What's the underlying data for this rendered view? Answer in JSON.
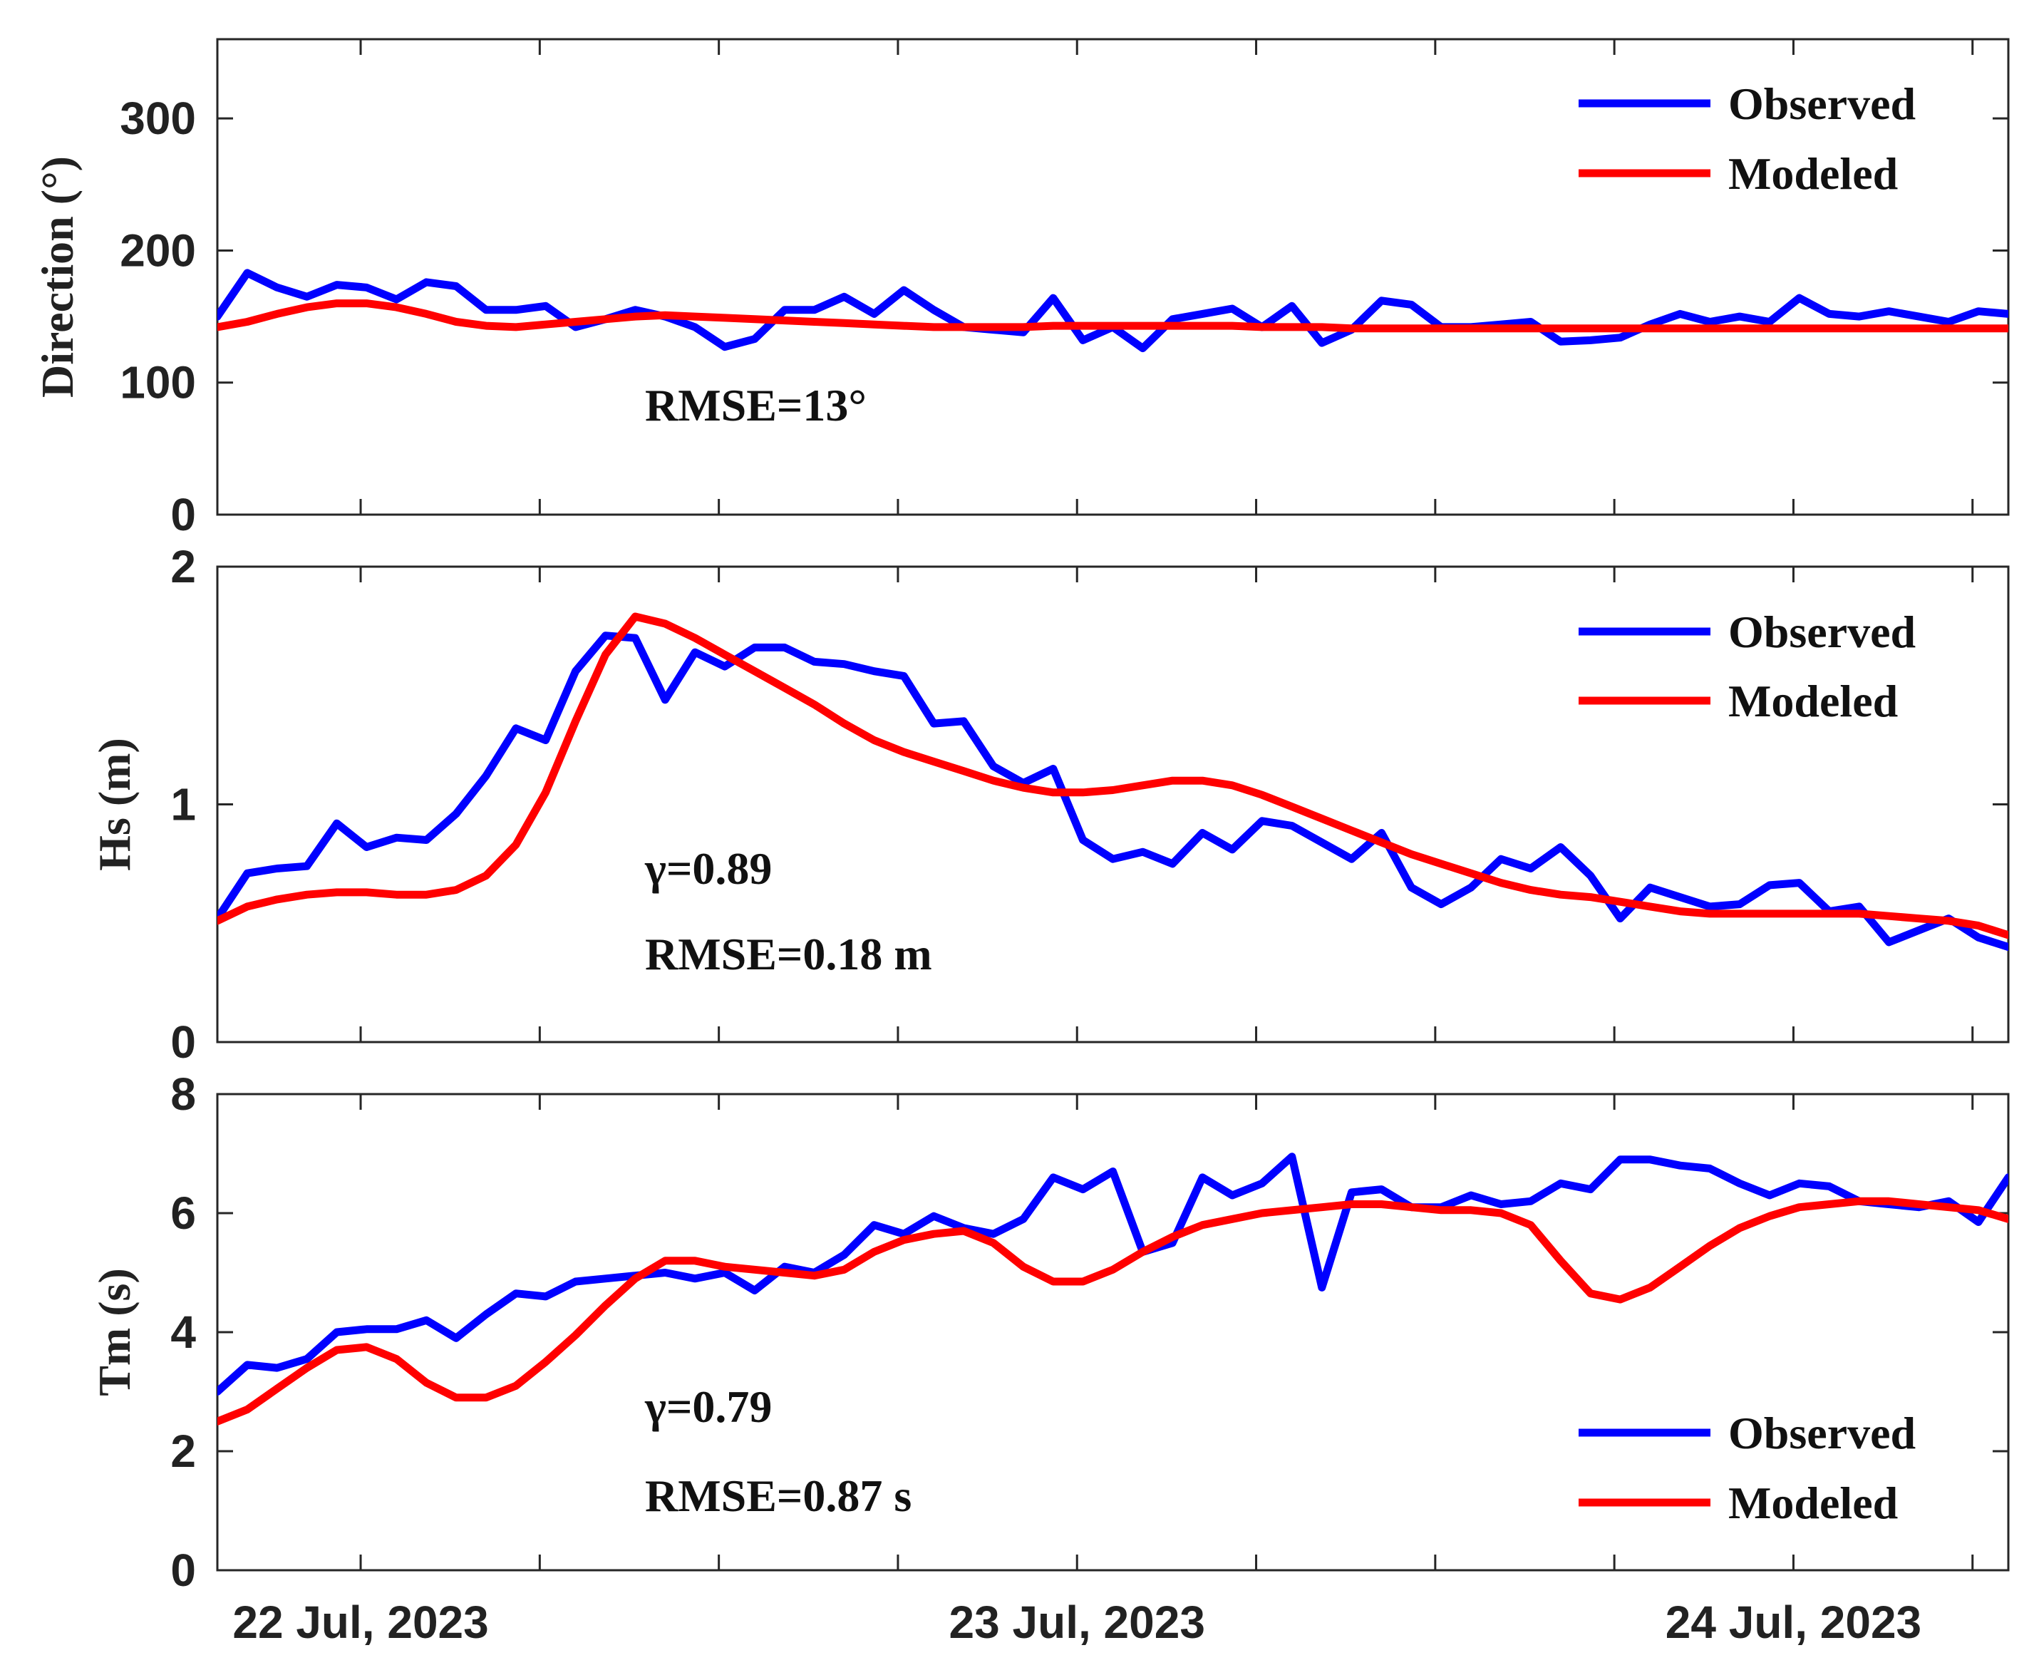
{
  "chart_data": [
    {
      "type": "line",
      "id": "direction",
      "ylabel": "Direction (°)",
      "ylim": [
        0,
        360
      ],
      "yticks": [
        0,
        100,
        200,
        300
      ],
      "xlim": [
        0,
        1
      ],
      "x_tick_labels": [],
      "legend": {
        "placement": "top-right",
        "entries": [
          "Observed",
          "Modeled"
        ]
      },
      "annotations": [
        "RMSE=13°"
      ],
      "series": [
        {
          "name": "Observed",
          "color": "#0000ff",
          "x": [
            0,
            0.0167,
            0.0333,
            0.05,
            0.0667,
            0.0833,
            0.1,
            0.1167,
            0.1333,
            0.15,
            0.1667,
            0.1833,
            0.2,
            0.2167,
            0.2333,
            0.25,
            0.2667,
            0.2833,
            0.3,
            0.3167,
            0.3333,
            0.35,
            0.3667,
            0.3833,
            0.4,
            0.4167,
            0.4333,
            0.45,
            0.4667,
            0.4833,
            0.5,
            0.5167,
            0.5333,
            0.55,
            0.5667,
            0.5833,
            0.6,
            0.6167,
            0.6333,
            0.65,
            0.6667,
            0.6833,
            0.7,
            0.7167,
            0.7333,
            0.75,
            0.7667,
            0.7833,
            0.8,
            0.8167,
            0.8333,
            0.85,
            0.8667,
            0.8833,
            0.9,
            0.9167,
            0.9333,
            0.95,
            0.9667,
            0.9833,
            1
          ],
          "values": [
            150,
            183,
            172,
            165,
            174,
            172,
            163,
            176,
            173,
            155,
            155,
            158,
            142,
            148,
            155,
            150,
            142,
            127,
            133,
            155,
            155,
            165,
            152,
            170,
            155,
            142,
            140,
            138,
            164,
            132,
            142,
            126,
            148,
            152,
            156,
            142,
            158,
            130,
            140,
            162,
            159,
            142,
            142,
            144,
            146,
            131,
            132,
            134,
            144,
            152,
            146,
            150,
            146,
            164,
            152,
            150,
            154,
            150,
            146,
            154,
            152
          ]
        },
        {
          "name": "Modeled",
          "color": "#ff0000",
          "x": [
            0,
            0.0167,
            0.0333,
            0.05,
            0.0667,
            0.0833,
            0.1,
            0.1167,
            0.1333,
            0.15,
            0.1667,
            0.1833,
            0.2,
            0.2167,
            0.2333,
            0.25,
            0.2667,
            0.2833,
            0.3,
            0.3167,
            0.3333,
            0.35,
            0.3667,
            0.3833,
            0.4,
            0.4167,
            0.4333,
            0.45,
            0.4667,
            0.4833,
            0.5,
            0.5167,
            0.5333,
            0.55,
            0.5667,
            0.5833,
            0.6,
            0.6167,
            0.6333,
            0.65,
            0.6667,
            0.6833,
            0.7,
            0.7167,
            0.7333,
            0.75,
            0.7667,
            0.7833,
            0.8,
            0.8167,
            0.8333,
            0.85,
            0.8667,
            0.8833,
            0.9,
            0.9167,
            0.9333,
            0.95,
            0.9667,
            0.9833,
            1
          ],
          "values": [
            142,
            146,
            152,
            157,
            160,
            160,
            157,
            152,
            146,
            143,
            142,
            144,
            146,
            148,
            150,
            151,
            150,
            149,
            148,
            147,
            146,
            145,
            144,
            143,
            142,
            142,
            142,
            142,
            143,
            143,
            143,
            143,
            143,
            143,
            143,
            142,
            142,
            142,
            141,
            141,
            141,
            141,
            141,
            141,
            141,
            141,
            141,
            141,
            141,
            141,
            141,
            141,
            141,
            141,
            141,
            141,
            141,
            141,
            141,
            141,
            141
          ]
        }
      ]
    },
    {
      "type": "line",
      "id": "hs",
      "ylabel": "Hs (m)",
      "ylim": [
        0,
        2
      ],
      "yticks": [
        0,
        1,
        2
      ],
      "xlim": [
        0,
        1
      ],
      "x_tick_labels": [],
      "legend": {
        "placement": "top-right",
        "entries": [
          "Observed",
          "Modeled"
        ]
      },
      "annotations": [
        "γ=0.89",
        "RMSE=0.18 m"
      ],
      "series": [
        {
          "name": "Observed",
          "color": "#0000ff",
          "x": [
            0,
            0.0167,
            0.0333,
            0.05,
            0.0667,
            0.0833,
            0.1,
            0.1167,
            0.1333,
            0.15,
            0.1667,
            0.1833,
            0.2,
            0.2167,
            0.2333,
            0.25,
            0.2667,
            0.2833,
            0.3,
            0.3167,
            0.3333,
            0.35,
            0.3667,
            0.3833,
            0.4,
            0.4167,
            0.4333,
            0.45,
            0.4667,
            0.4833,
            0.5,
            0.5167,
            0.5333,
            0.55,
            0.5667,
            0.5833,
            0.6,
            0.6167,
            0.6333,
            0.65,
            0.6667,
            0.6833,
            0.7,
            0.7167,
            0.7333,
            0.75,
            0.7667,
            0.7833,
            0.8,
            0.8167,
            0.8333,
            0.85,
            0.8667,
            0.8833,
            0.9,
            0.9167,
            0.9333,
            0.95,
            0.9667,
            0.9833,
            1
          ],
          "values": [
            0.52,
            0.71,
            0.73,
            0.74,
            0.92,
            0.82,
            0.86,
            0.85,
            0.96,
            1.12,
            1.32,
            1.27,
            1.56,
            1.71,
            1.7,
            1.44,
            1.64,
            1.58,
            1.66,
            1.66,
            1.6,
            1.59,
            1.56,
            1.54,
            1.34,
            1.35,
            1.16,
            1.09,
            1.15,
            0.85,
            0.77,
            0.8,
            0.75,
            0.88,
            0.81,
            0.93,
            0.91,
            0.84,
            0.77,
            0.88,
            0.65,
            0.58,
            0.65,
            0.77,
            0.73,
            0.82,
            0.7,
            0.52,
            0.65,
            0.61,
            0.57,
            0.58,
            0.66,
            0.67,
            0.55,
            0.57,
            0.42,
            0.47,
            0.52,
            0.44,
            0.4
          ]
        },
        {
          "name": "Modeled",
          "color": "#ff0000",
          "x": [
            0,
            0.0167,
            0.0333,
            0.05,
            0.0667,
            0.0833,
            0.1,
            0.1167,
            0.1333,
            0.15,
            0.1667,
            0.1833,
            0.2,
            0.2167,
            0.2333,
            0.25,
            0.2667,
            0.2833,
            0.3,
            0.3167,
            0.3333,
            0.35,
            0.3667,
            0.3833,
            0.4,
            0.4167,
            0.4333,
            0.45,
            0.4667,
            0.4833,
            0.5,
            0.5167,
            0.5333,
            0.55,
            0.5667,
            0.5833,
            0.6,
            0.6167,
            0.6333,
            0.65,
            0.6667,
            0.6833,
            0.7,
            0.7167,
            0.7333,
            0.75,
            0.7667,
            0.7833,
            0.8,
            0.8167,
            0.8333,
            0.85,
            0.8667,
            0.8833,
            0.9,
            0.9167,
            0.9333,
            0.95,
            0.9667,
            0.9833,
            1
          ],
          "values": [
            0.51,
            0.57,
            0.6,
            0.62,
            0.63,
            0.63,
            0.62,
            0.62,
            0.64,
            0.7,
            0.83,
            1.05,
            1.35,
            1.63,
            1.79,
            1.76,
            1.7,
            1.63,
            1.56,
            1.49,
            1.42,
            1.34,
            1.27,
            1.22,
            1.18,
            1.14,
            1.1,
            1.07,
            1.05,
            1.05,
            1.06,
            1.08,
            1.1,
            1.1,
            1.08,
            1.04,
            0.99,
            0.94,
            0.89,
            0.84,
            0.79,
            0.75,
            0.71,
            0.67,
            0.64,
            0.62,
            0.61,
            0.59,
            0.57,
            0.55,
            0.54,
            0.54,
            0.54,
            0.54,
            0.54,
            0.54,
            0.53,
            0.52,
            0.51,
            0.49,
            0.45
          ]
        }
      ]
    },
    {
      "type": "line",
      "id": "tm",
      "ylabel": "Tm (s)",
      "ylim": [
        0,
        8
      ],
      "yticks": [
        0,
        2,
        4,
        6,
        8
      ],
      "xlim": [
        0,
        1
      ],
      "x_tick_labels": [
        "22 Jul, 2023",
        "23 Jul, 2023",
        "24 Jul, 2023"
      ],
      "x_tick_positions": [
        0.08,
        0.48,
        0.88
      ],
      "legend": {
        "placement": "bottom-right",
        "entries": [
          "Observed",
          "Modeled"
        ]
      },
      "annotations": [
        "γ=0.79",
        "RMSE=0.87 s"
      ],
      "series": [
        {
          "name": "Observed",
          "color": "#0000ff",
          "x": [
            0,
            0.0167,
            0.0333,
            0.05,
            0.0667,
            0.0833,
            0.1,
            0.1167,
            0.1333,
            0.15,
            0.1667,
            0.1833,
            0.2,
            0.2167,
            0.2333,
            0.25,
            0.2667,
            0.2833,
            0.3,
            0.3167,
            0.3333,
            0.35,
            0.3667,
            0.3833,
            0.4,
            0.4167,
            0.4333,
            0.45,
            0.4667,
            0.4833,
            0.5,
            0.5167,
            0.5333,
            0.55,
            0.5667,
            0.5833,
            0.6,
            0.6167,
            0.6333,
            0.65,
            0.6667,
            0.6833,
            0.7,
            0.7167,
            0.7333,
            0.75,
            0.7667,
            0.7833,
            0.8,
            0.8167,
            0.8333,
            0.85,
            0.8667,
            0.8833,
            0.9,
            0.9167,
            0.9333,
            0.95,
            0.9667,
            0.9833,
            1
          ],
          "values": [
            3.0,
            3.45,
            3.4,
            3.55,
            4.0,
            4.05,
            4.05,
            4.2,
            3.9,
            4.3,
            4.65,
            4.6,
            4.85,
            4.9,
            4.95,
            5.0,
            4.9,
            5.0,
            4.7,
            5.1,
            5.0,
            5.3,
            5.8,
            5.65,
            5.95,
            5.75,
            5.65,
            5.9,
            6.6,
            6.4,
            6.7,
            5.35,
            5.5,
            6.6,
            6.3,
            6.5,
            6.95,
            4.75,
            6.35,
            6.4,
            6.1,
            6.1,
            6.3,
            6.15,
            6.2,
            6.5,
            6.4,
            6.9,
            6.9,
            6.8,
            6.75,
            6.5,
            6.3,
            6.5,
            6.45,
            6.2,
            6.15,
            6.1,
            6.2,
            5.85,
            6.6
          ]
        },
        {
          "name": "Modeled",
          "color": "#ff0000",
          "x": [
            0,
            0.0167,
            0.0333,
            0.05,
            0.0667,
            0.0833,
            0.1,
            0.1167,
            0.1333,
            0.15,
            0.1667,
            0.1833,
            0.2,
            0.2167,
            0.2333,
            0.25,
            0.2667,
            0.2833,
            0.3,
            0.3167,
            0.3333,
            0.35,
            0.3667,
            0.3833,
            0.4,
            0.4167,
            0.4333,
            0.45,
            0.4667,
            0.4833,
            0.5,
            0.5167,
            0.5333,
            0.55,
            0.5667,
            0.5833,
            0.6,
            0.6167,
            0.6333,
            0.65,
            0.6667,
            0.6833,
            0.7,
            0.7167,
            0.7333,
            0.75,
            0.7667,
            0.7833,
            0.8,
            0.8167,
            0.8333,
            0.85,
            0.8667,
            0.8833,
            0.9,
            0.9167,
            0.9333,
            0.95,
            0.9667,
            0.9833,
            1
          ],
          "values": [
            2.5,
            2.7,
            3.05,
            3.4,
            3.7,
            3.75,
            3.55,
            3.15,
            2.9,
            2.9,
            3.1,
            3.5,
            3.95,
            4.45,
            4.9,
            5.2,
            5.2,
            5.1,
            5.05,
            5.0,
            4.95,
            5.05,
            5.35,
            5.55,
            5.65,
            5.7,
            5.5,
            5.1,
            4.85,
            4.85,
            5.05,
            5.35,
            5.6,
            5.8,
            5.9,
            6.0,
            6.05,
            6.1,
            6.15,
            6.15,
            6.1,
            6.05,
            6.05,
            6.0,
            5.8,
            5.2,
            4.65,
            4.55,
            4.75,
            5.1,
            5.45,
            5.75,
            5.95,
            6.1,
            6.15,
            6.2,
            6.2,
            6.15,
            6.1,
            6.05,
            5.9
          ]
        }
      ]
    }
  ]
}
